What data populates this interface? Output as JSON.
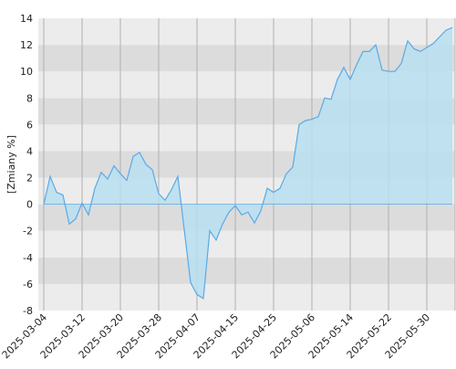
{
  "chart_data": {
    "type": "area",
    "y_label": "[Zmiany %]",
    "categories": [
      "2025-03-04",
      null,
      null,
      null,
      null,
      null,
      "2025-03-12",
      null,
      null,
      null,
      null,
      null,
      "2025-03-20",
      null,
      null,
      null,
      null,
      null,
      "2025-03-28",
      null,
      null,
      null,
      null,
      null,
      "2025-04-07",
      null,
      null,
      null,
      null,
      null,
      "2025-04-15",
      null,
      null,
      null,
      null,
      null,
      "2025-04-25",
      null,
      null,
      null,
      null,
      null,
      "2025-05-06",
      null,
      null,
      null,
      null,
      null,
      "2025-05-14",
      null,
      null,
      null,
      null,
      null,
      "2025-05-22",
      null,
      null,
      null,
      null,
      null,
      "2025-05-30",
      null,
      null,
      null,
      null
    ],
    "series": [
      {
        "color": "#5aa9e6",
        "fill": "#b9dff0",
        "values": [
          0,
          2.1,
          0.9,
          0.7,
          -1.5,
          -1.1,
          0.1,
          -0.8,
          1.2,
          2.4,
          1.9,
          2.9,
          2.3,
          1.8,
          3.6,
          3.9,
          3.0,
          2.6,
          0.8,
          0.3,
          1.1,
          2.1,
          -1.9,
          -5.9,
          -6.8,
          -7.1,
          -2.0,
          -2.7,
          -1.5,
          -0.6,
          -0.1,
          -0.8,
          -0.6,
          -1.4,
          -0.5,
          1.2,
          0.9,
          1.2,
          2.3,
          2.8,
          6.0,
          6.3,
          6.4,
          6.6,
          8.0,
          7.9,
          9.4,
          10.3,
          9.4,
          10.5,
          11.5,
          11.5,
          12.0,
          10.1,
          10.0,
          10.0,
          10.6,
          12.3,
          11.7,
          11.5,
          11.8,
          12.1,
          12.6,
          13.1,
          13.3
        ]
      }
    ],
    "ylim": [
      -8,
      14
    ],
    "yticks": [
      -8,
      -6,
      -4,
      -2,
      0,
      2,
      4,
      6,
      8,
      10,
      12,
      14
    ],
    "grid": true,
    "band_colors": [
      "#ececec",
      "#dcdcdc"
    ],
    "grid_color": "#b0b0b0"
  }
}
